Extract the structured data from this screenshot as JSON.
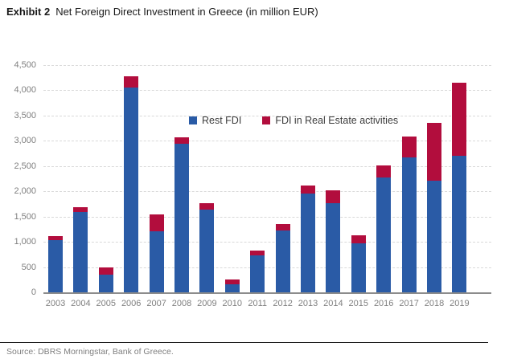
{
  "title": {
    "exhibit": "Exhibit 2",
    "text": "Net Foreign Direct Investment in Greece (in million EUR)"
  },
  "source": "Source: DBRS Morningstar, Bank of Greece.",
  "colors": {
    "rest_fdi_blue": "#2a5ba6",
    "real_estate_red": "#b20d3d",
    "gridline": "#d9d9d9",
    "axis_line": "#8c8c8c",
    "tick_label": "#7f7f7f"
  },
  "chart_data": {
    "type": "bar",
    "stacked": true,
    "title": "Net Foreign Direct Investment in Greece (in million EUR)",
    "categories": [
      "2003",
      "2004",
      "2005",
      "2006",
      "2007",
      "2008",
      "2009",
      "2010",
      "2011",
      "2012",
      "2013",
      "2014",
      "2015",
      "2016",
      "2017",
      "2018",
      "2019"
    ],
    "series": [
      {
        "name": "Rest FDI",
        "color": "#2a5ba6",
        "values": [
          1040,
          1590,
          350,
          4060,
          1210,
          2940,
          1640,
          160,
          730,
          1230,
          1950,
          1770,
          970,
          2270,
          2670,
          2210,
          2710
        ]
      },
      {
        "name": "FDI in Real Estate activities",
        "color": "#b20d3d",
        "values": [
          80,
          90,
          150,
          210,
          330,
          130,
          120,
          90,
          90,
          120,
          160,
          250,
          160,
          240,
          420,
          1150,
          1440
        ]
      }
    ],
    "totals": [
      1120,
      1680,
      500,
      4270,
      1540,
      3070,
      1760,
      250,
      820,
      1350,
      2110,
      2020,
      1130,
      2510,
      3090,
      3360,
      4150
    ],
    "xlabel": "",
    "ylabel": "",
    "ylim": [
      0,
      4500
    ],
    "ytick_step": 500,
    "grid": "horizontal-dashed",
    "legend_position": "inside-upper-center"
  }
}
